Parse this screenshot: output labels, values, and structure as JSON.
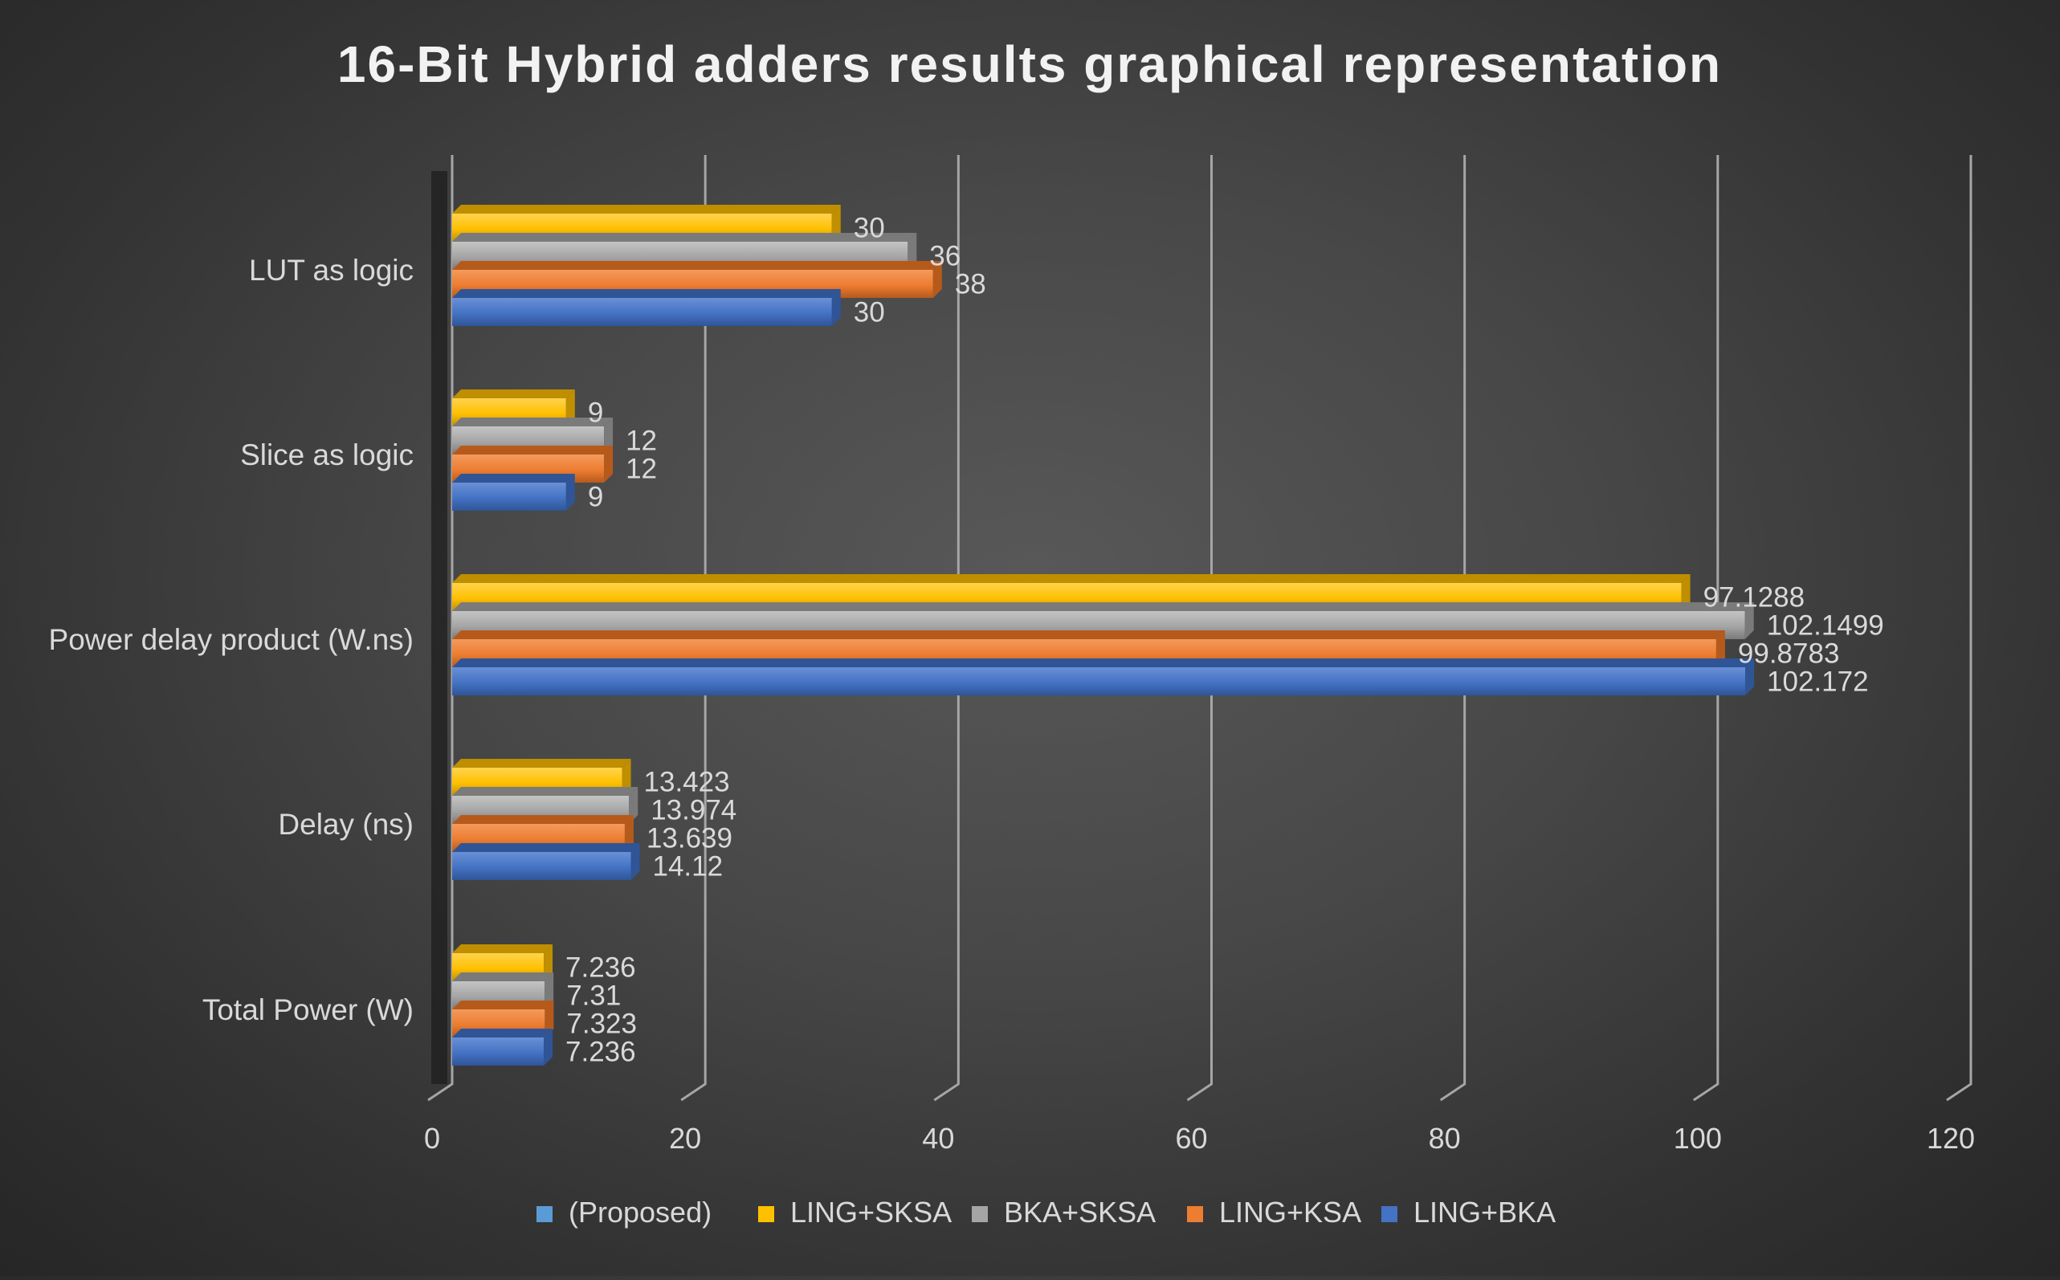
{
  "chart_data": {
    "type": "bar",
    "orientation": "horizontal",
    "title": "16-Bit Hybrid adders results graphical representation",
    "categories": [
      "Total Power (W)",
      "Delay (ns)",
      "Power delay product (W.ns)",
      "Slice as logic",
      "LUT as logic"
    ],
    "series": [
      {
        "name": "(Proposed)",
        "values": [
          null,
          null,
          null,
          null,
          null
        ],
        "color": "#5b9bd5",
        "color_dark": "#3f74a8",
        "color_light": "#7fb3e3"
      },
      {
        "name": "LING+SKSA",
        "values": [
          7.236,
          13.423,
          97.1288,
          9,
          30
        ],
        "color": "#ffc000",
        "color_dark": "#bf8f00",
        "color_light": "#ffd34d"
      },
      {
        "name": "BKA+SKSA",
        "values": [
          7.31,
          13.974,
          102.1499,
          12,
          36
        ],
        "color": "#a5a5a5",
        "color_dark": "#7a7a7a",
        "color_light": "#c4c4c4"
      },
      {
        "name": "LING+KSA",
        "values": [
          7.323,
          13.639,
          99.8783,
          12,
          38
        ],
        "color": "#ed7d31",
        "color_dark": "#b65a1c",
        "color_light": "#f39a5c"
      },
      {
        "name": "LING+BKA",
        "values": [
          7.236,
          14.12,
          102.172,
          9,
          30
        ],
        "color": "#4472c4",
        "color_dark": "#2f5597",
        "color_light": "#6a90d6"
      }
    ],
    "bar_order_top_to_bottom": [
      "LING+SKSA",
      "BKA+SKSA",
      "LING+KSA",
      "LING+BKA"
    ],
    "data_labels": {
      "Total Power (W)": [
        "7.236",
        "7.31",
        "7.323",
        "7.236"
      ],
      "Delay (ns)": [
        "13.423",
        "13.974",
        "13.639",
        "14.12"
      ],
      "Power delay product (W.ns)": [
        "97.1288",
        "102.1499",
        "99.8783",
        "102.172"
      ],
      "Slice as logic": [
        "9",
        "12",
        "12",
        "9"
      ],
      "LUT as logic": [
        "30",
        "36",
        "38",
        "30"
      ]
    },
    "x_ticks": [
      "0",
      "20",
      "40",
      "60",
      "80",
      "100",
      "120"
    ],
    "xlim": [
      0,
      120
    ],
    "xlabel": "",
    "ylabel": "",
    "grid": true,
    "legend_position": "bottom",
    "style": "3d-clustered",
    "colors": {
      "background_center": "#585858",
      "background_edge": "#262626",
      "text": "#d9d9d9",
      "title": "#f2f2f2",
      "gridline": "#a6a6a6"
    }
  }
}
